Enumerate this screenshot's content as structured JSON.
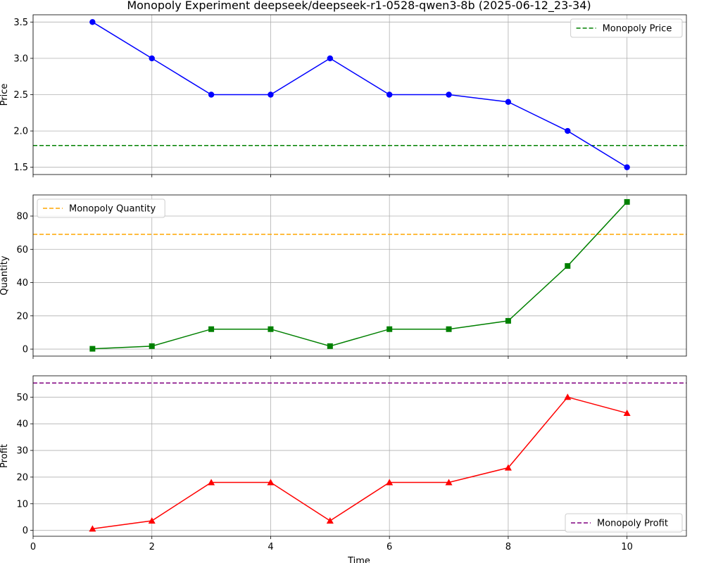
{
  "title": "Monopoly Experiment deepseek/deepseek-r1-0528-qwen3-8b (2025-06-12_23-34)",
  "xlabel": "Time",
  "chart_data": [
    {
      "type": "line",
      "ylabel": "Price",
      "x": [
        1,
        2,
        3,
        4,
        5,
        6,
        7,
        8,
        9,
        10
      ],
      "series": [
        {
          "values": [
            3.5,
            3.0,
            2.5,
            2.5,
            3.0,
            2.5,
            2.5,
            2.4,
            2.0,
            1.5
          ],
          "color": "#0000ff",
          "marker": "circle"
        }
      ],
      "reference_line": {
        "name": "Monopoly Price",
        "value": 1.8,
        "color": "#008000",
        "style": "dashed"
      },
      "legend_position": "top-right",
      "xlim": [
        0,
        11
      ],
      "ylim": [
        1.4,
        3.6
      ],
      "yticks": [
        1.5,
        2.0,
        2.5,
        3.0,
        3.5
      ],
      "ytick_labels": [
        "1.5",
        "2.0",
        "2.5",
        "3.0",
        "3.5"
      ],
      "grid": true
    },
    {
      "type": "line",
      "ylabel": "Quantity",
      "x": [
        1,
        2,
        3,
        4,
        5,
        6,
        7,
        8,
        9,
        10
      ],
      "series": [
        {
          "values": [
            0.2,
            1.8,
            12,
            12,
            1.8,
            12,
            12,
            17,
            50,
            88.5
          ],
          "color": "#008000",
          "marker": "square"
        }
      ],
      "reference_line": {
        "name": "Monopoly Quantity",
        "value": 69,
        "color": "#ffa500",
        "style": "dashed"
      },
      "legend_position": "top-left",
      "xlim": [
        0,
        11
      ],
      "ylim": [
        -4.2,
        92.7
      ],
      "yticks": [
        0,
        20,
        40,
        60,
        80
      ],
      "ytick_labels": [
        "0",
        "20",
        "40",
        "60",
        "80"
      ],
      "grid": true
    },
    {
      "type": "line",
      "ylabel": "Profit",
      "x": [
        1,
        2,
        3,
        4,
        5,
        6,
        7,
        8,
        9,
        10
      ],
      "series": [
        {
          "values": [
            0.6,
            3.6,
            18,
            18,
            3.6,
            18,
            18,
            23.5,
            50,
            44
          ],
          "color": "#ff0000",
          "marker": "triangle"
        }
      ],
      "reference_line": {
        "name": "Monopoly Profit",
        "value": 55.3,
        "color": "#800080",
        "style": "dashed"
      },
      "legend_position": "bottom-right",
      "xlim": [
        0,
        11
      ],
      "ylim": [
        -2.2,
        58
      ],
      "yticks": [
        0,
        10,
        20,
        30,
        40,
        50
      ],
      "ytick_labels": [
        "0",
        "10",
        "20",
        "30",
        "40",
        "50"
      ],
      "grid": true
    }
  ],
  "xticks": [
    0,
    2,
    4,
    6,
    8,
    10
  ],
  "xtick_labels": [
    "0",
    "2",
    "4",
    "6",
    "8",
    "10"
  ]
}
